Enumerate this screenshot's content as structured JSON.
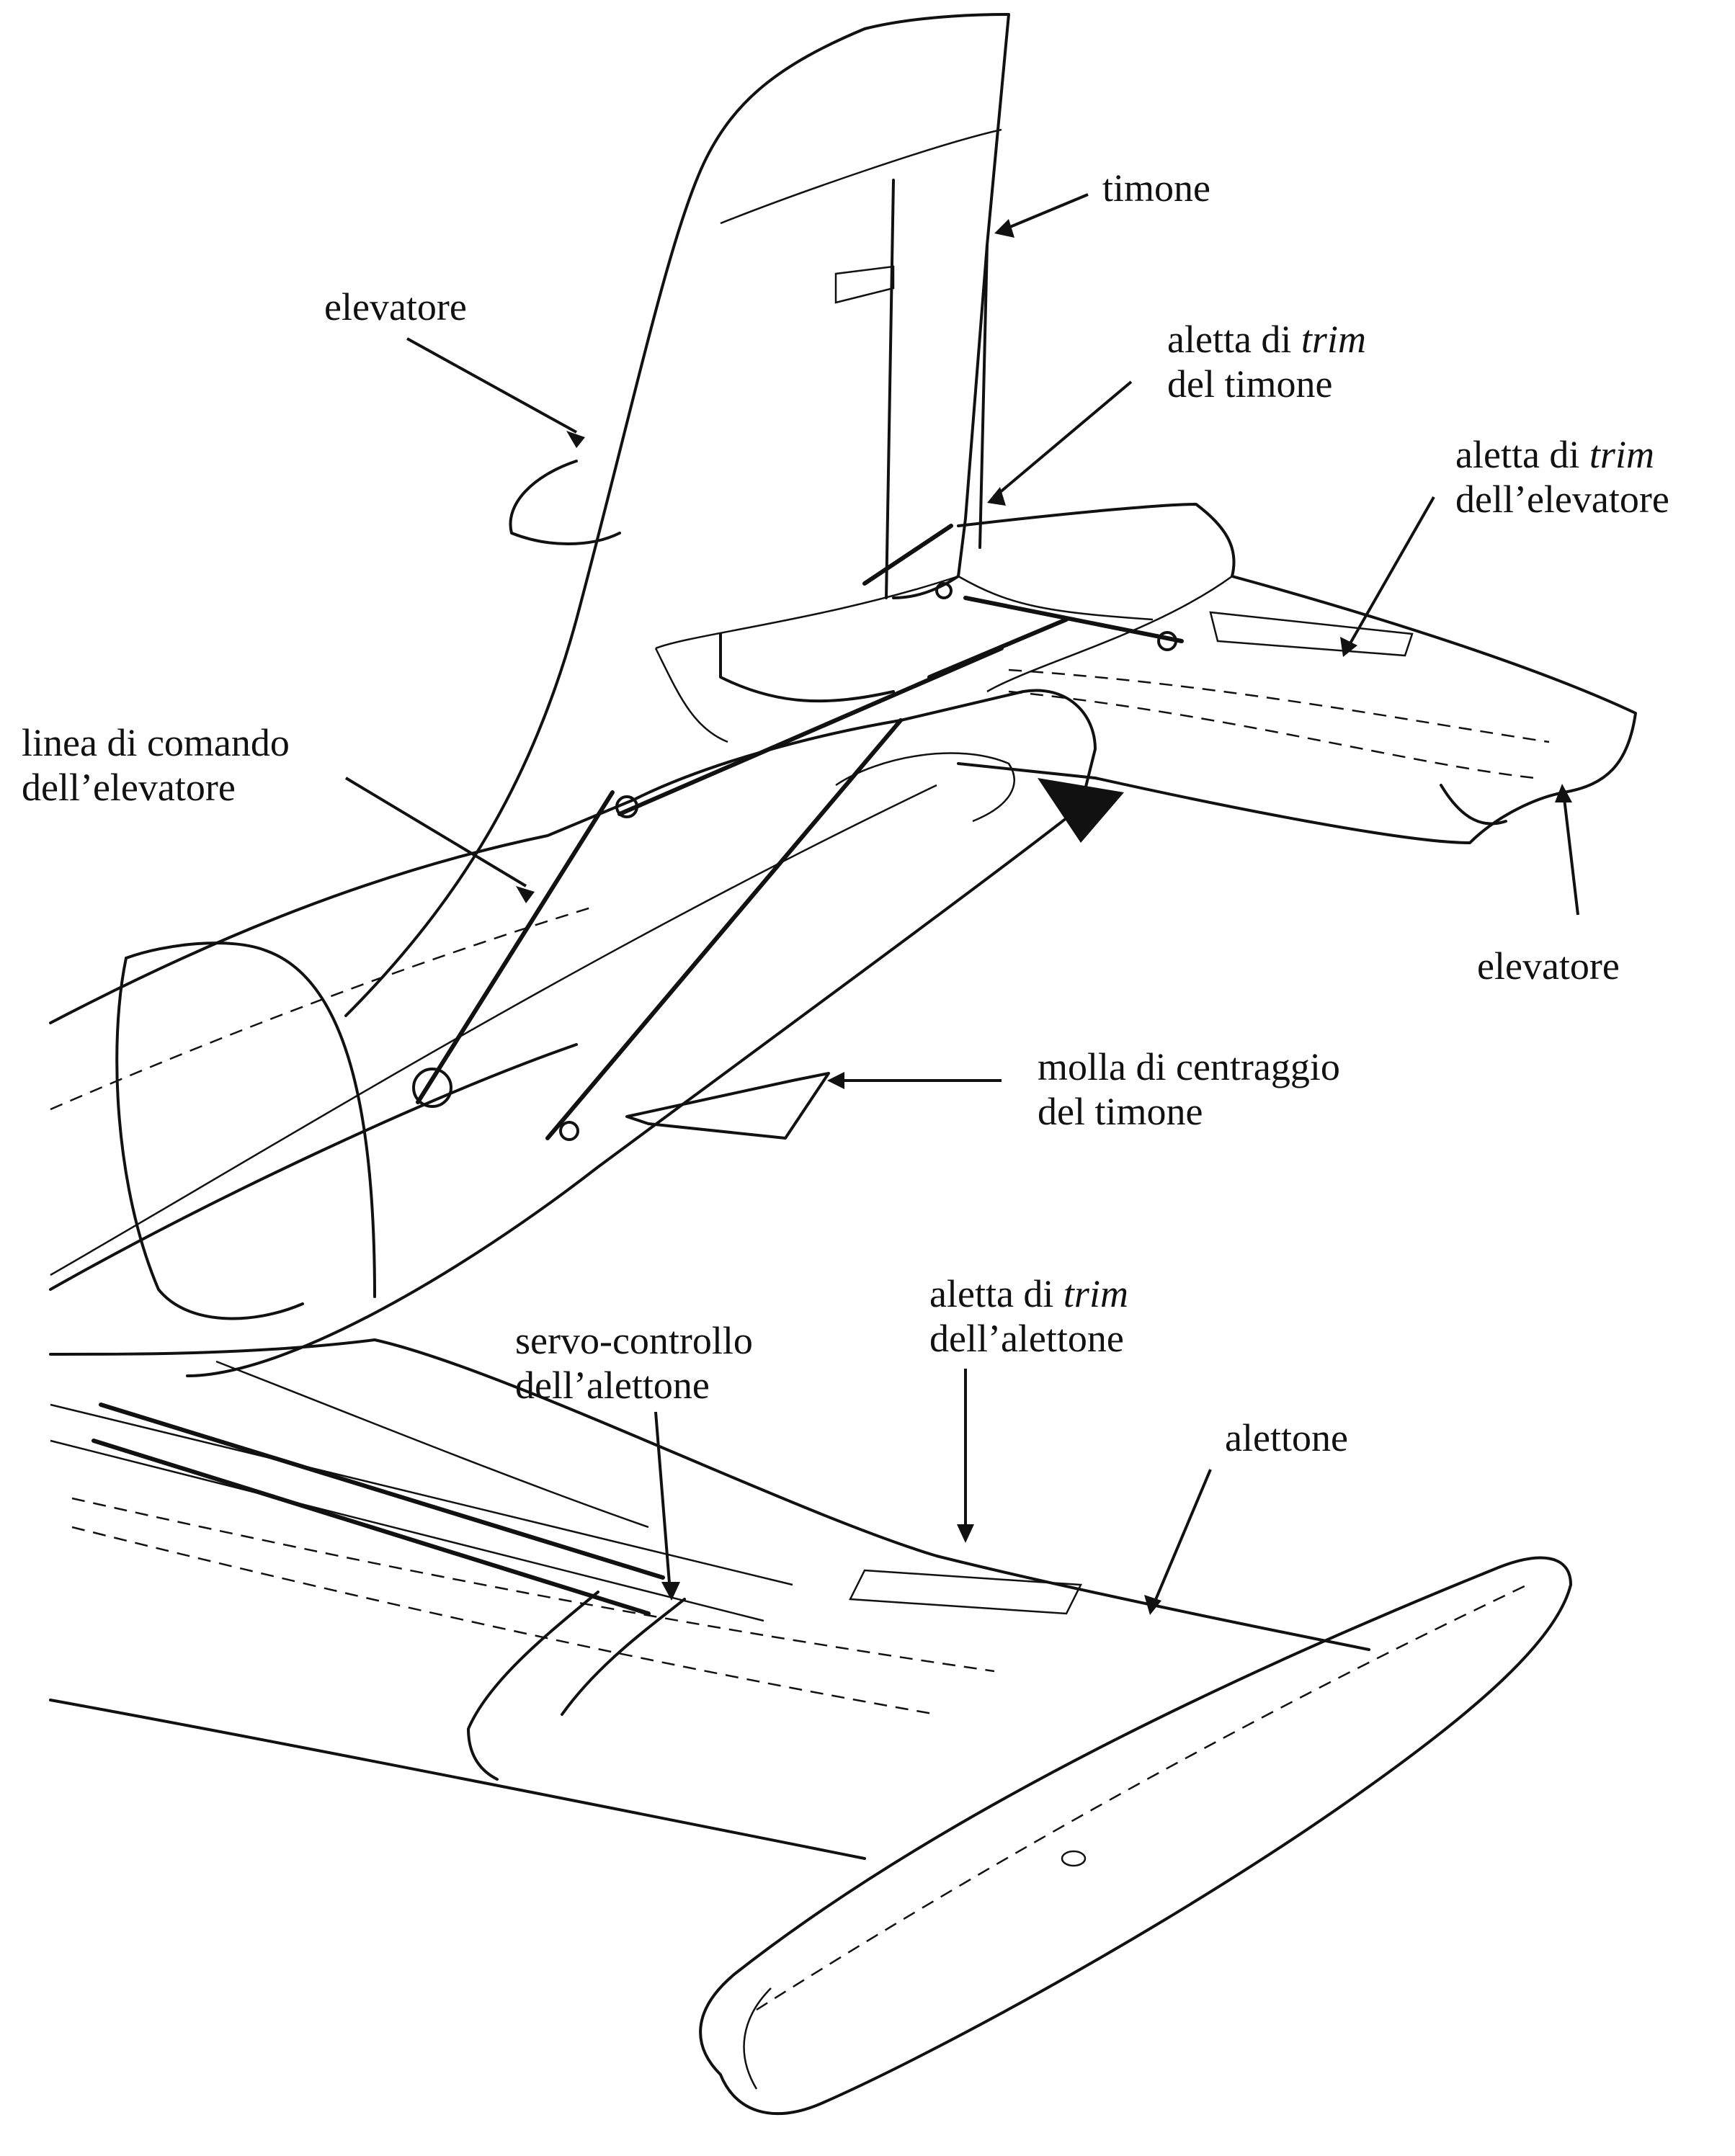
{
  "labels": {
    "timone": "timone",
    "elevatore_top": "elevatore",
    "trim_timone_a": "aletta di ",
    "trim_timone_trim": "trim",
    "trim_timone_b": "del timone",
    "trim_elev_a": "aletta di ",
    "trim_elev_trim": "trim",
    "trim_elev_b": "dell’elevatore",
    "linea_a": "linea di comando",
    "linea_b": "dell’elevatore",
    "elevatore_right": "elevatore",
    "molla_a": "molla di centraggio",
    "molla_b": "del timone",
    "trim_alettone_a": "aletta di ",
    "trim_alettone_trim": "trim",
    "trim_alettone_b": "dell’alettone",
    "servo_a": "servo-controllo",
    "servo_b": "dell’alettone",
    "alettone": "alettone"
  },
  "colors": {
    "ink": "#111111",
    "paper": "#ffffff"
  }
}
